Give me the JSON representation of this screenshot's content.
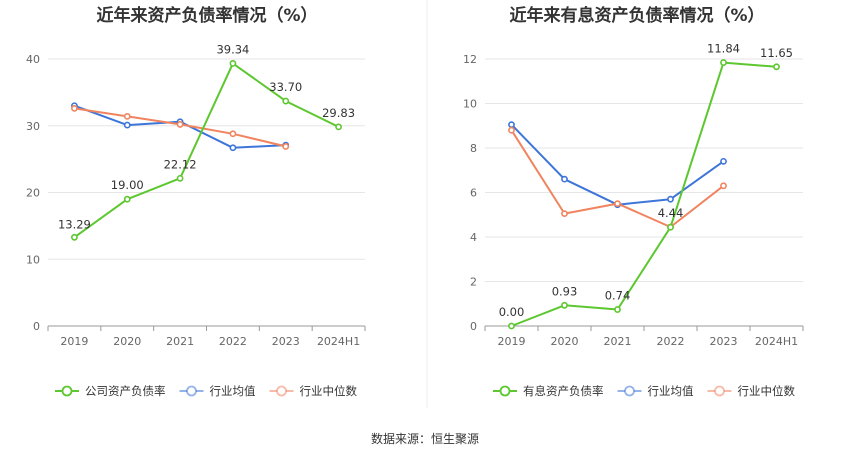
{
  "source_label": "数据来源：恒生聚源",
  "colors": {
    "company": "#5cc72f",
    "industry_avg": "#3d75d9",
    "industry_median": "#f0845e"
  },
  "chart_data": [
    {
      "type": "line",
      "title": "近年来资产负债率情况（%）",
      "categories": [
        "2019",
        "2020",
        "2021",
        "2022",
        "2023",
        "2024H1"
      ],
      "ylim": [
        0,
        40
      ],
      "yticks": [
        0,
        10,
        20,
        30,
        40
      ],
      "grid": true,
      "legend_position": "bottom",
      "series": [
        {
          "name": "公司资产负债率",
          "key": "company",
          "values": [
            13.29,
            19.0,
            22.12,
            39.34,
            33.7,
            29.83
          ],
          "labels": [
            "13.29",
            "19.00",
            "22.12",
            "39.34",
            "33.70",
            "29.83"
          ]
        },
        {
          "name": "行业均值",
          "key": "industry_avg",
          "values": [
            33.0,
            30.1,
            30.6,
            26.7,
            27.1,
            null
          ]
        },
        {
          "name": "行业中位数",
          "key": "industry_median",
          "values": [
            32.6,
            31.4,
            30.2,
            28.8,
            26.9,
            null
          ]
        }
      ]
    },
    {
      "type": "line",
      "title": "近年来有息资产负债率情况（%）",
      "categories": [
        "2019",
        "2020",
        "2021",
        "2022",
        "2023",
        "2024H1"
      ],
      "ylim": [
        0,
        12
      ],
      "yticks": [
        0,
        2,
        4,
        6,
        8,
        10,
        12
      ],
      "grid": true,
      "legend_position": "bottom",
      "series": [
        {
          "name": "有息资产负债率",
          "key": "company",
          "values": [
            0.0,
            0.93,
            0.74,
            4.44,
            11.84,
            11.65
          ],
          "labels": [
            "0.00",
            "0.93",
            "0.74",
            "4.44",
            "11.84",
            "11.65"
          ]
        },
        {
          "name": "行业均值",
          "key": "industry_avg",
          "values": [
            9.05,
            6.6,
            5.45,
            5.7,
            7.4,
            null
          ]
        },
        {
          "name": "行业中位数",
          "key": "industry_median",
          "values": [
            8.8,
            5.05,
            5.5,
            4.45,
            6.3,
            null
          ]
        }
      ]
    }
  ]
}
